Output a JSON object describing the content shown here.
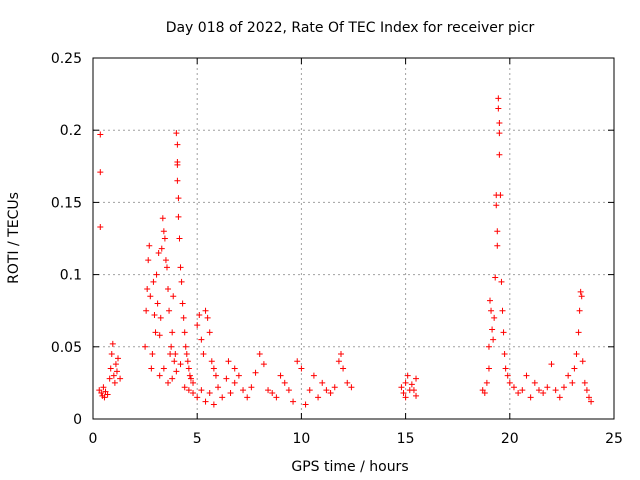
{
  "chart_data": {
    "type": "scatter",
    "title": "Day 018 of 2022, Rate Of TEC Index for receiver picr",
    "xlabel": "GPS time / hours",
    "ylabel": "ROTI / TECUs",
    "xlim": [
      0,
      25
    ],
    "ylim": [
      0,
      0.25
    ],
    "xticks": [
      0,
      5,
      10,
      15,
      20,
      25
    ],
    "yticks": [
      0,
      0.05,
      0.1,
      0.15,
      0.2,
      0.25
    ],
    "ytick_labels": [
      "0",
      "0.05",
      "0.1",
      "0.15",
      "0.2",
      "0.25"
    ],
    "grid": true,
    "marker": "+",
    "color": "#ff0000",
    "points": [
      [
        0.3,
        0.02
      ],
      [
        0.35,
        0.197
      ],
      [
        0.35,
        0.171
      ],
      [
        0.35,
        0.133
      ],
      [
        0.4,
        0.018
      ],
      [
        0.45,
        0.016
      ],
      [
        0.5,
        0.022
      ],
      [
        0.55,
        0.015
      ],
      [
        0.6,
        0.019
      ],
      [
        0.7,
        0.017
      ],
      [
        0.8,
        0.028
      ],
      [
        0.85,
        0.035
      ],
      [
        0.9,
        0.045
      ],
      [
        0.95,
        0.052
      ],
      [
        1.0,
        0.03
      ],
      [
        1.05,
        0.025
      ],
      [
        1.1,
        0.038
      ],
      [
        1.15,
        0.033
      ],
      [
        1.2,
        0.042
      ],
      [
        1.3,
        0.028
      ],
      [
        2.5,
        0.05
      ],
      [
        2.55,
        0.075
      ],
      [
        2.6,
        0.09
      ],
      [
        2.65,
        0.11
      ],
      [
        2.7,
        0.12
      ],
      [
        2.75,
        0.085
      ],
      [
        2.8,
        0.035
      ],
      [
        2.85,
        0.045
      ],
      [
        2.9,
        0.095
      ],
      [
        2.95,
        0.072
      ],
      [
        3.0,
        0.06
      ],
      [
        3.05,
        0.1
      ],
      [
        3.1,
        0.08
      ],
      [
        3.15,
        0.115
      ],
      [
        3.2,
        0.058
      ],
      [
        3.25,
        0.07
      ],
      [
        3.3,
        0.118
      ],
      [
        3.35,
        0.139
      ],
      [
        3.4,
        0.13
      ],
      [
        3.45,
        0.125
      ],
      [
        3.5,
        0.11
      ],
      [
        3.55,
        0.105
      ],
      [
        3.6,
        0.09
      ],
      [
        3.65,
        0.075
      ],
      [
        3.7,
        0.045
      ],
      [
        3.75,
        0.05
      ],
      [
        3.8,
        0.06
      ],
      [
        3.85,
        0.085
      ],
      [
        3.9,
        0.04
      ],
      [
        3.95,
        0.045
      ],
      [
        4.0,
        0.198
      ],
      [
        4.05,
        0.19
      ],
      [
        4.05,
        0.178
      ],
      [
        4.05,
        0.176
      ],
      [
        4.05,
        0.165
      ],
      [
        4.1,
        0.153
      ],
      [
        4.1,
        0.14
      ],
      [
        4.15,
        0.125
      ],
      [
        4.2,
        0.105
      ],
      [
        4.25,
        0.095
      ],
      [
        4.3,
        0.08
      ],
      [
        4.35,
        0.07
      ],
      [
        4.4,
        0.06
      ],
      [
        4.45,
        0.05
      ],
      [
        4.5,
        0.045
      ],
      [
        4.55,
        0.04
      ],
      [
        4.6,
        0.035
      ],
      [
        4.65,
        0.03
      ],
      [
        4.7,
        0.028
      ],
      [
        4.8,
        0.025
      ],
      [
        3.2,
        0.03
      ],
      [
        3.4,
        0.035
      ],
      [
        3.6,
        0.025
      ],
      [
        3.8,
        0.028
      ],
      [
        4.0,
        0.033
      ],
      [
        4.2,
        0.038
      ],
      [
        4.4,
        0.022
      ],
      [
        4.6,
        0.02
      ],
      [
        4.8,
        0.018
      ],
      [
        5.0,
        0.015
      ],
      [
        5.0,
        0.065
      ],
      [
        5.1,
        0.072
      ],
      [
        5.2,
        0.055
      ],
      [
        5.3,
        0.045
      ],
      [
        5.4,
        0.075
      ],
      [
        5.5,
        0.07
      ],
      [
        5.6,
        0.06
      ],
      [
        5.7,
        0.04
      ],
      [
        5.8,
        0.035
      ],
      [
        5.9,
        0.03
      ],
      [
        5.2,
        0.02
      ],
      [
        5.4,
        0.012
      ],
      [
        5.6,
        0.018
      ],
      [
        5.8,
        0.01
      ],
      [
        6.0,
        0.022
      ],
      [
        6.2,
        0.015
      ],
      [
        6.4,
        0.028
      ],
      [
        6.6,
        0.018
      ],
      [
        6.8,
        0.025
      ],
      [
        7.0,
        0.03
      ],
      [
        6.5,
        0.04
      ],
      [
        6.8,
        0.035
      ],
      [
        7.2,
        0.02
      ],
      [
        7.4,
        0.015
      ],
      [
        7.6,
        0.022
      ],
      [
        7.8,
        0.032
      ],
      [
        8.0,
        0.045
      ],
      [
        8.2,
        0.038
      ],
      [
        8.4,
        0.02
      ],
      [
        8.6,
        0.018
      ],
      [
        8.8,
        0.015
      ],
      [
        9.0,
        0.03
      ],
      [
        9.2,
        0.025
      ],
      [
        9.4,
        0.02
      ],
      [
        9.6,
        0.012
      ],
      [
        9.8,
        0.04
      ],
      [
        10.0,
        0.035
      ],
      [
        10.2,
        0.01
      ],
      [
        10.4,
        0.02
      ],
      [
        10.6,
        0.03
      ],
      [
        10.8,
        0.015
      ],
      [
        11.0,
        0.025
      ],
      [
        11.2,
        0.02
      ],
      [
        11.4,
        0.018
      ],
      [
        11.6,
        0.022
      ],
      [
        11.8,
        0.04
      ],
      [
        11.9,
        0.045
      ],
      [
        12.0,
        0.035
      ],
      [
        12.2,
        0.025
      ],
      [
        12.4,
        0.022
      ],
      [
        14.8,
        0.022
      ],
      [
        14.9,
        0.018
      ],
      [
        15.0,
        0.025
      ],
      [
        15.1,
        0.03
      ],
      [
        15.2,
        0.02
      ],
      [
        15.3,
        0.024
      ],
      [
        15.4,
        0.02
      ],
      [
        15.5,
        0.028
      ],
      [
        15.5,
        0.016
      ],
      [
        15.0,
        0.015
      ],
      [
        18.7,
        0.02
      ],
      [
        18.8,
        0.018
      ],
      [
        18.9,
        0.025
      ],
      [
        19.0,
        0.035
      ],
      [
        19.0,
        0.05
      ],
      [
        19.05,
        0.082
      ],
      [
        19.1,
        0.075
      ],
      [
        19.15,
        0.062
      ],
      [
        19.2,
        0.055
      ],
      [
        19.25,
        0.07
      ],
      [
        19.3,
        0.098
      ],
      [
        19.35,
        0.155
      ],
      [
        19.35,
        0.148
      ],
      [
        19.4,
        0.13
      ],
      [
        19.4,
        0.12
      ],
      [
        19.45,
        0.222
      ],
      [
        19.45,
        0.215
      ],
      [
        19.5,
        0.205
      ],
      [
        19.5,
        0.198
      ],
      [
        19.5,
        0.183
      ],
      [
        19.55,
        0.155
      ],
      [
        19.6,
        0.095
      ],
      [
        19.65,
        0.075
      ],
      [
        19.7,
        0.06
      ],
      [
        19.75,
        0.045
      ],
      [
        19.8,
        0.035
      ],
      [
        19.9,
        0.03
      ],
      [
        20.0,
        0.025
      ],
      [
        20.2,
        0.022
      ],
      [
        20.4,
        0.018
      ],
      [
        20.6,
        0.02
      ],
      [
        20.8,
        0.03
      ],
      [
        21.0,
        0.015
      ],
      [
        21.2,
        0.025
      ],
      [
        21.4,
        0.02
      ],
      [
        21.6,
        0.018
      ],
      [
        21.8,
        0.022
      ],
      [
        22.0,
        0.038
      ],
      [
        22.2,
        0.02
      ],
      [
        22.4,
        0.015
      ],
      [
        22.6,
        0.022
      ],
      [
        22.8,
        0.03
      ],
      [
        23.0,
        0.025
      ],
      [
        23.1,
        0.035
      ],
      [
        23.2,
        0.045
      ],
      [
        23.3,
        0.06
      ],
      [
        23.35,
        0.075
      ],
      [
        23.4,
        0.088
      ],
      [
        23.45,
        0.085
      ],
      [
        23.5,
        0.04
      ],
      [
        23.6,
        0.025
      ],
      [
        23.7,
        0.02
      ],
      [
        23.8,
        0.015
      ],
      [
        23.9,
        0.012
      ]
    ]
  }
}
